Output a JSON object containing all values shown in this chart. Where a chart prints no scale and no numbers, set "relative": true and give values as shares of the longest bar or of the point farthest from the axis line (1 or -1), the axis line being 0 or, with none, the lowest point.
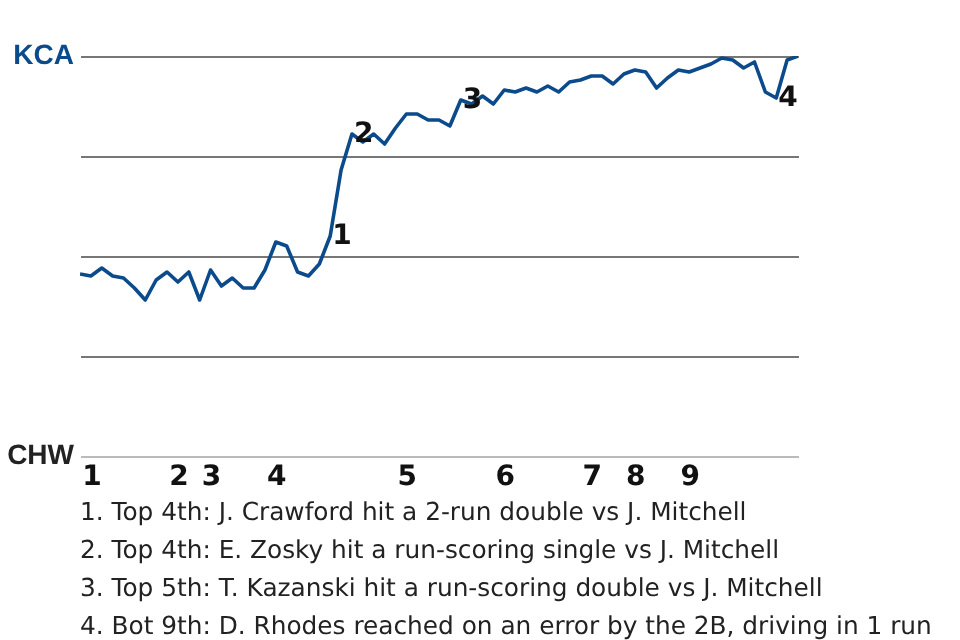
{
  "chart_data": {
    "type": "line",
    "relative": true,
    "categories": [
      null,
      "1",
      null,
      null,
      null,
      null,
      null,
      null,
      null,
      "2",
      null,
      null,
      "3",
      null,
      null,
      null,
      null,
      null,
      "4",
      null,
      null,
      null,
      null,
      null,
      null,
      null,
      null,
      null,
      null,
      null,
      "5",
      null,
      null,
      null,
      null,
      null,
      null,
      null,
      null,
      "6",
      null,
      null,
      null,
      null,
      null,
      null,
      null,
      "7",
      null,
      null,
      null,
      "8",
      null,
      null,
      null,
      null,
      "9",
      null,
      null,
      null,
      null,
      null,
      null,
      null,
      null,
      null,
      null
    ],
    "series": [
      {
        "color": "#0b4a8b",
        "values": [
          0.455,
          0.45,
          0.47,
          0.45,
          0.445,
          0.42,
          0.39,
          0.44,
          0.46,
          0.435,
          0.46,
          0.39,
          0.465,
          0.425,
          0.445,
          0.42,
          0.42,
          0.465,
          0.535,
          0.525,
          0.46,
          0.45,
          0.48,
          0.55,
          0.715,
          0.805,
          0.785,
          0.805,
          0.78,
          0.82,
          0.855,
          0.855,
          0.84,
          0.84,
          0.825,
          0.89,
          0.88,
          0.9,
          0.88,
          0.915,
          0.91,
          0.92,
          0.91,
          0.925,
          0.91,
          0.935,
          0.94,
          0.95,
          0.95,
          0.93,
          0.955,
          0.965,
          0.96,
          0.92,
          0.945,
          0.965,
          0.96,
          0.97,
          0.98,
          0.995,
          0.99,
          0.97,
          0.985,
          0.91,
          0.895,
          0.99,
          1
        ]
      }
    ],
    "grid": "y",
    "annotations": [
      "KCA",
      "CHW",
      {
        "text": "1",
        "y": 0.55
      },
      {
        "text": "2",
        "y": 0.805
      },
      {
        "text": "3",
        "y": 0.89
      },
      {
        "text": "4",
        "y": 0.895
      },
      "1. Top 4th: J. Crawford hit a 2-run double vs J. Mitchell",
      "2. Top 4th: E. Zosky hit a run-scoring single vs J. Mitchell",
      "3. Top 5th: T. Kazanski hit a run-scoring double vs J. Mitchell",
      "4. Bot 9th: D. Rhodes reached on an error by the 2B, driving in 1 run"
    ]
  }
}
